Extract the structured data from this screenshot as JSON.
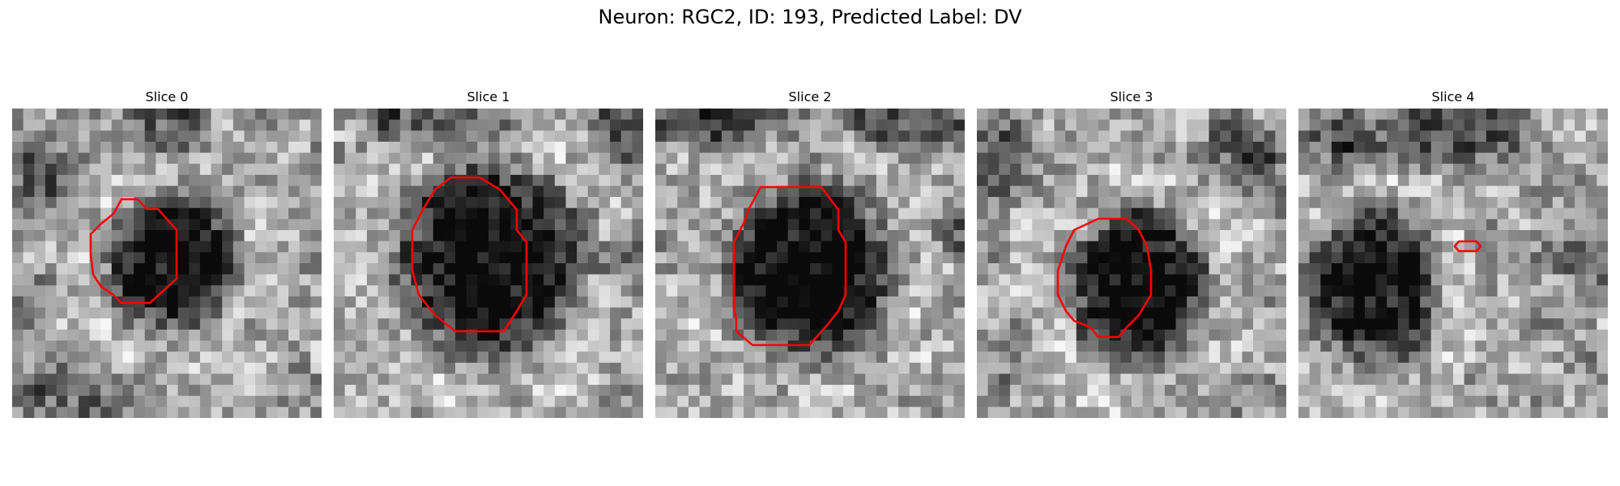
{
  "figure": {
    "title": "Neuron: RGC2, ID: 193, Predicted Label: DV",
    "contour_color": "#ff0000",
    "colormap": "gray",
    "slices": [
      {
        "title": "Slice 0"
      },
      {
        "title": "Slice 1"
      },
      {
        "title": "Slice 2"
      },
      {
        "title": "Slice 3"
      },
      {
        "title": "Slice 4"
      }
    ]
  }
}
